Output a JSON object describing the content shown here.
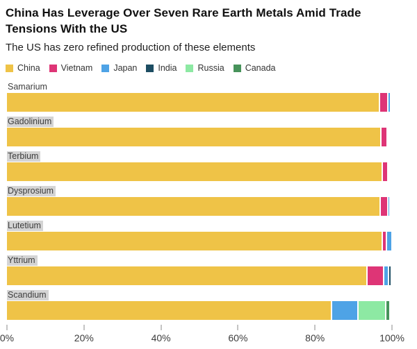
{
  "header": {
    "title": "China Has Leverage Over Seven Rare Earth Metals Amid Trade Tensions With the US",
    "subtitle": "The US has zero refined production of these elements"
  },
  "chart_data": {
    "type": "bar",
    "orientation": "horizontal",
    "stacked": true,
    "unit": "percent",
    "grid": false,
    "legend_position": "top",
    "xlim": [
      0,
      100
    ],
    "x_ticks": [
      "0%",
      "20%",
      "40%",
      "60%",
      "80%",
      "100%"
    ],
    "x_tick_values": [
      0,
      20,
      40,
      60,
      80,
      100
    ],
    "legend": [
      {
        "name": "China",
        "color": "#EFC347"
      },
      {
        "name": "Vietnam",
        "color": "#DE3576"
      },
      {
        "name": "Japan",
        "color": "#4EA3E6"
      },
      {
        "name": "India",
        "color": "#1D4D63"
      },
      {
        "name": "Russia",
        "color": "#8DE9A3"
      },
      {
        "name": "Canada",
        "color": "#47935B"
      }
    ],
    "categories": [
      "Samarium",
      "Gadolinium",
      "Terbium",
      "Dysprosium",
      "Lutetium",
      "Yttrium",
      "Scandium"
    ],
    "rows": [
      {
        "element": "Samarium",
        "label_highlighted": false,
        "segments": [
          {
            "country": "China",
            "value": 96.5
          },
          {
            "country": "Vietnam",
            "value": 1.8
          },
          {
            "country": "Japan",
            "value": 0.5
          }
        ]
      },
      {
        "element": "Gadolinium",
        "label_highlighted": true,
        "segments": [
          {
            "country": "China",
            "value": 97.0
          },
          {
            "country": "Vietnam",
            "value": 1.2
          }
        ]
      },
      {
        "element": "Terbium",
        "label_highlighted": true,
        "segments": [
          {
            "country": "China",
            "value": 97.3
          },
          {
            "country": "Vietnam",
            "value": 1.1
          }
        ]
      },
      {
        "element": "Dysprosium",
        "label_highlighted": true,
        "segments": [
          {
            "country": "China",
            "value": 96.8
          },
          {
            "country": "Vietnam",
            "value": 1.5
          },
          {
            "country": "Japan",
            "value": 0.3
          }
        ]
      },
      {
        "element": "Lutetium",
        "label_highlighted": true,
        "segments": [
          {
            "country": "China",
            "value": 97.3
          },
          {
            "country": "Vietnam",
            "value": 0.8
          },
          {
            "country": "Japan",
            "value": 1.0
          }
        ]
      },
      {
        "element": "Yttrium",
        "label_highlighted": true,
        "segments": [
          {
            "country": "China",
            "value": 93.3
          },
          {
            "country": "Vietnam",
            "value": 4.0
          },
          {
            "country": "Japan",
            "value": 0.9
          },
          {
            "country": "India",
            "value": 0.4
          }
        ]
      },
      {
        "element": "Scandium",
        "label_highlighted": true,
        "segments": [
          {
            "country": "China",
            "value": 84.2
          },
          {
            "country": "Japan",
            "value": 6.4
          },
          {
            "country": "Russia",
            "value": 6.8
          },
          {
            "country": "Canada",
            "value": 0.8
          }
        ]
      }
    ]
  }
}
